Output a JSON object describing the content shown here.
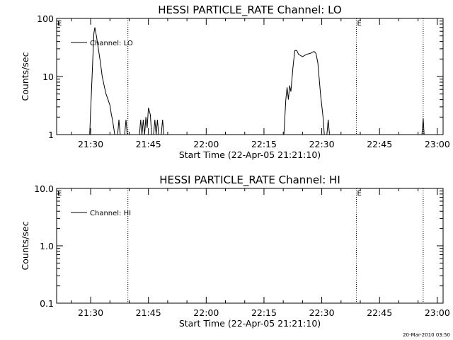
{
  "chart_data": [
    {
      "type": "line",
      "title": "HESSI PARTICLE_RATE Channel: LO",
      "xlabel": "Start Time (22-Apr-05 21:21:10)",
      "ylabel": "Counts/sec",
      "yscale": "log",
      "ylim": [
        1,
        100
      ],
      "yticks": [
        1,
        10,
        100
      ],
      "ytick_labels": [
        "1",
        "10",
        "100"
      ],
      "xlim": [
        "21:21:10",
        "23:01:30"
      ],
      "xticks": [
        "21:30",
        "21:45",
        "22:00",
        "22:15",
        "22:30",
        "22:45",
        "23:00"
      ],
      "legend": {
        "label": "Channel: LO",
        "position": "top-left"
      },
      "markers": [
        {
          "time": "21:39:40",
          "label": ""
        },
        {
          "time": "22:39:00",
          "label": "E"
        },
        {
          "time": "22:56:20",
          "label": ""
        }
      ],
      "start_flag": "E",
      "series": [
        {
          "name": "Channel: LO",
          "points": [
            [
              "21:29:45",
              1
            ],
            [
              "21:30:50",
              55
            ],
            [
              "21:31:05",
              70
            ],
            [
              "21:31:30",
              50
            ],
            [
              "21:32:00",
              30
            ],
            [
              "21:32:30",
              18
            ],
            [
              "21:33:00",
              10
            ],
            [
              "21:33:30",
              7
            ],
            [
              "21:34:00",
              5
            ],
            [
              "21:34:30",
              4
            ],
            [
              "21:35:00",
              3.2
            ],
            [
              "21:35:20",
              2.3
            ],
            [
              "21:35:40",
              1.8
            ],
            [
              "21:36:00",
              1.3
            ],
            [
              "21:36:15",
              1
            ],
            null,
            [
              "21:37:00",
              1
            ],
            [
              "21:37:20",
              1.8
            ],
            [
              "21:37:40",
              1
            ],
            null,
            [
              "21:38:50",
              1
            ],
            [
              "21:39:10",
              1.8
            ],
            [
              "21:39:30",
              1
            ],
            null,
            [
              "21:42:40",
              1
            ],
            [
              "21:43:00",
              1.8
            ],
            [
              "21:43:20",
              1
            ],
            [
              "21:43:40",
              1.8
            ],
            [
              "21:44:00",
              1
            ],
            [
              "21:44:20",
              2
            ],
            [
              "21:44:40",
              1.3
            ],
            [
              "21:45:00",
              2.9
            ],
            [
              "21:45:30",
              2.2
            ],
            [
              "21:45:50",
              1
            ],
            null,
            [
              "21:46:20",
              1
            ],
            [
              "21:46:40",
              1.8
            ],
            [
              "21:47:00",
              1
            ],
            [
              "21:47:20",
              1.8
            ],
            [
              "21:47:40",
              1
            ],
            null,
            [
              "21:48:20",
              1
            ],
            [
              "21:48:40",
              1.8
            ],
            [
              "21:49:00",
              1
            ],
            null,
            [
              "22:20:10",
              1
            ],
            [
              "22:20:40",
              4
            ],
            [
              "22:21:00",
              6.5
            ],
            [
              "22:21:20",
              4
            ],
            [
              "22:21:40",
              7
            ],
            [
              "22:22:00",
              5.5
            ],
            [
              "22:22:30",
              14
            ],
            [
              "22:23:00",
              28
            ],
            [
              "22:23:30",
              28
            ],
            [
              "22:24:00",
              24
            ],
            [
              "22:25:00",
              22
            ],
            [
              "22:26:00",
              24
            ],
            [
              "22:27:00",
              25
            ],
            [
              "22:28:00",
              27
            ],
            [
              "22:28:30",
              25
            ],
            [
              "22:29:00",
              17
            ],
            [
              "22:29:40",
              5
            ],
            [
              "22:30:20",
              2
            ],
            [
              "22:30:40",
              1
            ],
            null,
            [
              "22:31:20",
              1
            ],
            [
              "22:31:40",
              1.8
            ],
            [
              "22:32:00",
              1
            ],
            null,
            [
              "22:56:00",
              1
            ],
            [
              "22:56:20",
              1.9
            ],
            [
              "22:56:35",
              1
            ]
          ]
        }
      ]
    },
    {
      "type": "line",
      "title": "HESSI PARTICLE_RATE Channel: HI",
      "xlabel": "Start Time (22-Apr-05 21:21:10)",
      "ylabel": "Counts/sec",
      "yscale": "log",
      "ylim": [
        0.1,
        10
      ],
      "yticks": [
        0.1,
        1,
        10
      ],
      "ytick_labels": [
        "0.1",
        "1.0",
        "10.0"
      ],
      "xlim": [
        "21:21:10",
        "23:01:30"
      ],
      "xticks": [
        "21:30",
        "21:45",
        "22:00",
        "22:15",
        "22:30",
        "22:45",
        "23:00"
      ],
      "legend": {
        "label": "Channel: HI",
        "position": "top-left"
      },
      "markers": [
        {
          "time": "21:39:40",
          "label": ""
        },
        {
          "time": "22:39:00",
          "label": "E"
        },
        {
          "time": "22:56:20",
          "label": ""
        }
      ],
      "start_flag": "E",
      "series": [
        {
          "name": "Channel: HI",
          "points": []
        }
      ]
    }
  ],
  "footer": {
    "timestamp": "20-Mar-2010 03:50"
  }
}
